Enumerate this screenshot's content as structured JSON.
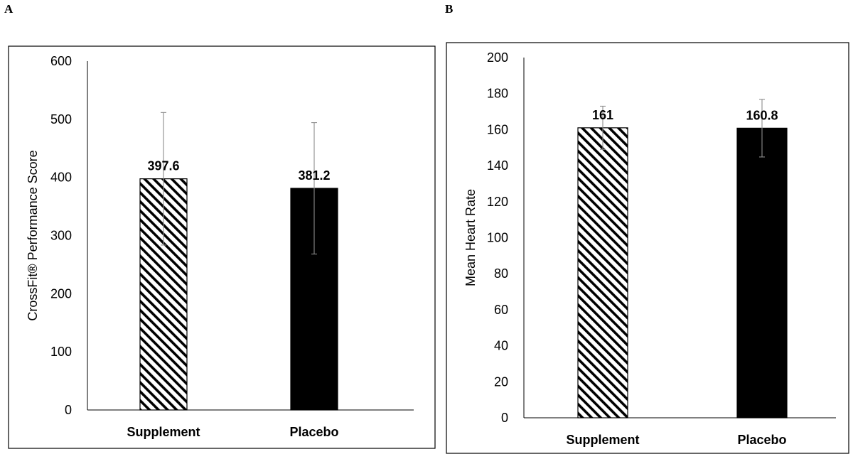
{
  "panels": [
    {
      "letter": "A"
    },
    {
      "letter": "B"
    }
  ],
  "colors": {
    "supplement_pattern": "#000000",
    "placebo_fill": "#000000",
    "error_bar": "#8c8c8c",
    "frame": "#000000",
    "axis": "#000000"
  },
  "chart_data": [
    {
      "type": "bar",
      "title": "",
      "xlabel": "",
      "ylabel": "CrossFit® Performance Score",
      "categories": [
        "Supplement",
        "Placebo"
      ],
      "values": [
        397.6,
        381.2
      ],
      "data_labels": [
        "397.6",
        "381.2"
      ],
      "error": [
        114,
        113
      ],
      "ylim": [
        0,
        600
      ],
      "yticks": [
        0,
        100,
        200,
        300,
        400,
        500,
        600
      ],
      "fills": [
        "hatched",
        "solid"
      ],
      "grid": false,
      "legend": "none"
    },
    {
      "type": "bar",
      "title": "",
      "xlabel": "",
      "ylabel": "Mean Heart Rate",
      "categories": [
        "Supplement",
        "Placebo"
      ],
      "values": [
        161,
        160.8
      ],
      "data_labels": [
        "161",
        "160.8"
      ],
      "error": [
        12,
        16
      ],
      "ylim": [
        0,
        200
      ],
      "yticks": [
        0,
        20,
        40,
        60,
        80,
        100,
        120,
        140,
        160,
        180,
        200
      ],
      "fills": [
        "hatched",
        "solid"
      ],
      "grid": false,
      "legend": "none"
    }
  ]
}
